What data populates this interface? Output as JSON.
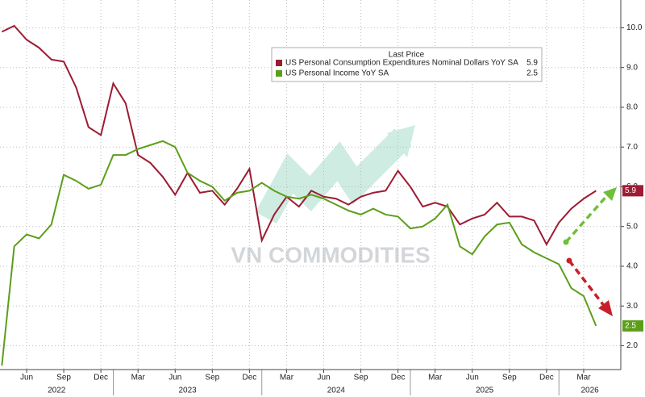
{
  "chart_data": {
    "type": "line",
    "legend_title": "Last Price",
    "watermark": "VN COMMODITIES",
    "x": [
      "2022-04",
      "2022-05",
      "2022-06",
      "2022-07",
      "2022-08",
      "2022-09",
      "2022-10",
      "2022-11",
      "2022-12",
      "2023-01",
      "2023-02",
      "2023-03",
      "2023-04",
      "2023-05",
      "2023-06",
      "2023-07",
      "2023-08",
      "2023-09",
      "2023-10",
      "2023-11",
      "2023-12",
      "2024-01",
      "2024-02",
      "2024-03",
      "2024-04",
      "2024-05",
      "2024-06",
      "2024-07",
      "2024-08",
      "2024-09",
      "2024-10",
      "2024-11",
      "2024-12",
      "2025-01",
      "2025-02",
      "2025-03",
      "2025-04",
      "2025-05",
      "2025-06",
      "2025-07",
      "2025-08",
      "2025-09",
      "2025-10",
      "2025-11",
      "2025-12",
      "2026-01",
      "2026-02",
      "2026-03",
      "2026-04"
    ],
    "series": [
      {
        "name": "US Personal Consumption Expenditures Nominal Dollars YoY SA",
        "color": "#9e1b32",
        "last_value": 5.9,
        "values": [
          9.9,
          10.05,
          9.7,
          9.5,
          9.2,
          9.15,
          8.5,
          7.5,
          7.3,
          8.6,
          8.1,
          6.8,
          6.6,
          6.25,
          5.8,
          6.35,
          5.85,
          5.9,
          5.55,
          5.95,
          6.45,
          4.65,
          5.3,
          5.75,
          5.5,
          5.9,
          5.75,
          5.7,
          5.55,
          5.75,
          5.85,
          5.9,
          6.4,
          6.0,
          5.5,
          5.6,
          5.5,
          5.05,
          5.2,
          5.3,
          5.6,
          5.25,
          5.25,
          5.15,
          4.55,
          5.1,
          5.45,
          5.7,
          5.9
        ]
      },
      {
        "name": "US Personal Income YoY SA",
        "color": "#5c9e1a",
        "last_value": 2.5,
        "values": [
          1.5,
          4.5,
          4.8,
          4.7,
          5.05,
          6.3,
          6.15,
          5.95,
          6.05,
          6.8,
          6.8,
          6.95,
          7.05,
          7.15,
          7.0,
          6.35,
          6.15,
          6.0,
          5.65,
          5.85,
          5.9,
          6.1,
          5.9,
          5.75,
          5.7,
          5.8,
          5.7,
          5.55,
          5.4,
          5.3,
          5.45,
          5.3,
          5.25,
          4.95,
          5.0,
          5.2,
          5.55,
          4.5,
          4.3,
          4.75,
          5.05,
          5.1,
          4.55,
          4.35,
          4.2,
          4.05,
          3.45,
          3.25,
          2.5
        ]
      }
    ],
    "xlim": [
      "2022-04",
      "2026-06"
    ],
    "xticks": [
      {
        "value": "2022-06",
        "label": "Jun"
      },
      {
        "value": "2022-09",
        "label": "Sep"
      },
      {
        "value": "2022-12",
        "label": "Dec"
      },
      {
        "value": "2023-03",
        "label": "Mar"
      },
      {
        "value": "2023-06",
        "label": "Jun"
      },
      {
        "value": "2023-09",
        "label": "Sep"
      },
      {
        "value": "2023-12",
        "label": "Dec"
      },
      {
        "value": "2024-03",
        "label": "Mar"
      },
      {
        "value": "2024-06",
        "label": "Jun"
      },
      {
        "value": "2024-09",
        "label": "Sep"
      },
      {
        "value": "2024-12",
        "label": "Dec"
      },
      {
        "value": "2025-03",
        "label": "Mar"
      },
      {
        "value": "2025-06",
        "label": "Jun"
      },
      {
        "value": "2025-09",
        "label": "Sep"
      },
      {
        "value": "2025-12",
        "label": "Dec"
      },
      {
        "value": "2026-03",
        "label": "Mar"
      }
    ],
    "year_labels": [
      "2022",
      "2023",
      "2024",
      "2025",
      "2026"
    ],
    "ylim": [
      1.4,
      10.7
    ],
    "yticks": [
      {
        "value": 2,
        "label": "2.0"
      },
      {
        "value": 3,
        "label": "3.0"
      },
      {
        "value": 4,
        "label": "4.0"
      },
      {
        "value": 5,
        "label": "5.0"
      },
      {
        "value": 6,
        "label": "6.0"
      },
      {
        "value": 7,
        "label": "7.0"
      },
      {
        "value": 8,
        "label": "8.0"
      },
      {
        "value": 9,
        "label": "9.0"
      },
      {
        "value": 10,
        "label": "10.0"
      }
    ],
    "grid": true
  }
}
